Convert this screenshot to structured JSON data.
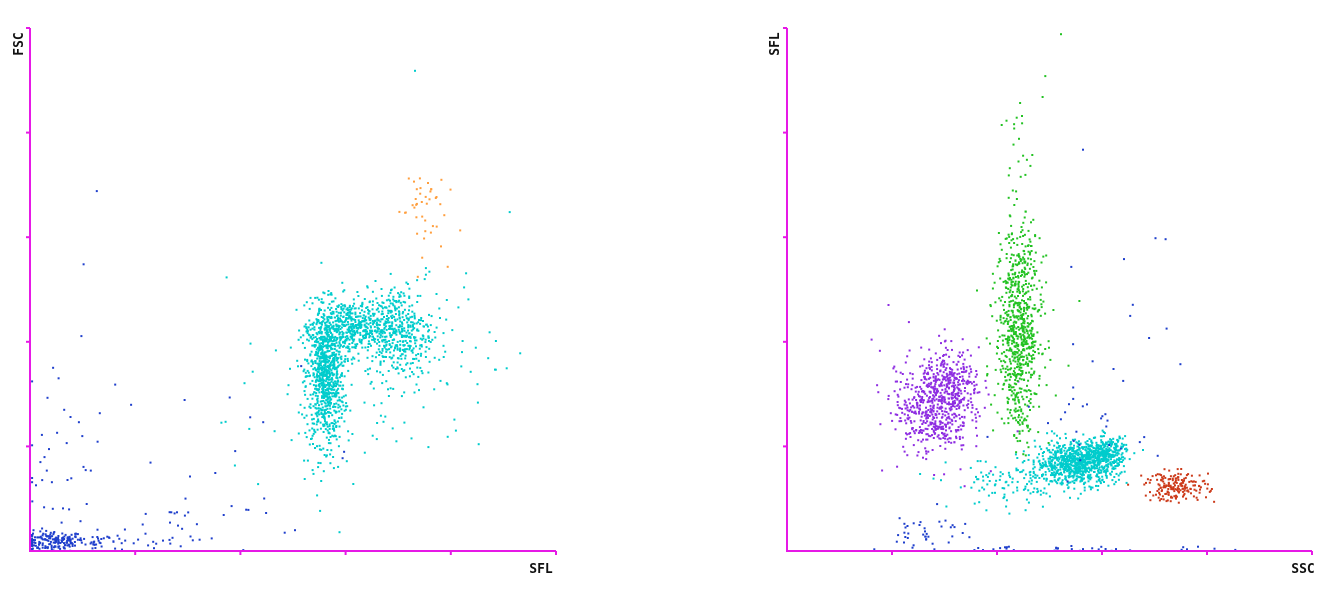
{
  "colors": {
    "axis": "#e619e6",
    "background": "#ffffff",
    "debris": "#1f3fcc",
    "neutrophil": "#00cccc",
    "basophil": "#ff9e3d",
    "lymphocyte": "#8e2de2",
    "monocyte": "#22c222",
    "eosinophil": "#cc3a1a"
  },
  "chart_data": [
    {
      "type": "scatter",
      "title": "",
      "xlabel": "SFL",
      "ylabel": "FSC",
      "xlim": [
        0,
        100
      ],
      "ylim": [
        0,
        100
      ],
      "grid": false,
      "series": [
        {
          "color_key": "debris",
          "clusters": [
            {
              "cx": 4,
              "cy": 2,
              "sx": 3,
              "sy": 1,
              "n": 150
            },
            {
              "cx": 13,
              "cy": 2,
              "sx": 6,
              "sy": 1,
              "n": 60
            },
            {
              "cx": 28,
              "cy": 5,
              "sx": 8,
              "sy": 3,
              "n": 28
            },
            {
              "cx": 6,
              "cy": 18,
              "sx": 4,
              "sy": 10,
              "n": 40
            },
            {
              "cx": 40,
              "cy": 18,
              "sx": 12,
              "sy": 8,
              "n": 18
            }
          ]
        },
        {
          "color_key": "neutrophil",
          "clusters": [
            {
              "cx": 56,
              "cy": 34,
              "sx": 1.8,
              "sy": 6.5,
              "n": 900
            },
            {
              "cx": 61,
              "cy": 43,
              "sx": 3.5,
              "sy": 2.6,
              "n": 450
            },
            {
              "cx": 70,
              "cy": 42,
              "sx": 3.2,
              "sy": 4.5,
              "n": 420
            },
            {
              "cx": 78,
              "cy": 40,
              "sx": 5,
              "sy": 8,
              "n": 45
            },
            {
              "cx": 57,
              "cy": 24,
              "sx": 10,
              "sy": 8,
              "n": 60
            }
          ]
        },
        {
          "color_key": "basophil",
          "clusters": [
            {
              "cx": 74,
              "cy": 66,
              "sx": 2.3,
              "sy": 4.5,
              "n": 42
            }
          ]
        }
      ],
      "outliers": [
        {
          "x": 73,
          "y": 92,
          "color_key": "neutrophil"
        },
        {
          "x": 91,
          "y": 65,
          "color_key": "neutrophil"
        },
        {
          "x": 93,
          "y": 38,
          "color_key": "neutrophil"
        },
        {
          "x": 12.5,
          "y": 69,
          "color_key": "debris"
        },
        {
          "x": 10,
          "y": 55,
          "color_key": "debris"
        },
        {
          "x": 16,
          "y": 32,
          "color_key": "debris"
        }
      ]
    },
    {
      "type": "scatter",
      "title": "",
      "xlabel": "SSC",
      "ylabel": "SFL",
      "xlim": [
        0,
        100
      ],
      "ylim": [
        0,
        100
      ],
      "grid": false,
      "series": [
        {
          "color_key": "lymphocyte",
          "clusters": [
            {
              "cx": 27.5,
              "cy": 27,
              "sx": 3.5,
              "sy": 4,
              "n": 420
            },
            {
              "cx": 31,
              "cy": 32,
              "sx": 2.8,
              "sy": 3.2,
              "n": 260
            },
            {
              "cx": 28,
              "cy": 29,
              "sx": 7,
              "sy": 9,
              "n": 60
            }
          ]
        },
        {
          "color_key": "monocyte",
          "clusters": [
            {
              "cx": 44,
              "cy": 42,
              "sx": 2.2,
              "sy": 7,
              "n": 520
            },
            {
              "cx": 44,
              "cy": 54,
              "sx": 1.8,
              "sy": 5,
              "n": 120
            },
            {
              "cx": 44,
              "cy": 30,
              "sx": 1.6,
              "sy": 5,
              "n": 110
            },
            {
              "cx": 44,
              "cy": 72,
              "sx": 1.5,
              "sy": 8,
              "n": 25
            }
          ]
        },
        {
          "color_key": "neutrophil",
          "clusters": [
            {
              "cx": 55,
              "cy": 17,
              "sx": 3.8,
              "sy": 2,
              "n": 800
            },
            {
              "cx": 60.5,
              "cy": 19,
              "sx": 2,
              "sy": 1.5,
              "n": 250
            },
            {
              "cx": 43,
              "cy": 13,
              "sx": 6,
              "sy": 2.5,
              "n": 120
            }
          ]
        },
        {
          "color_key": "eosinophil",
          "clusters": [
            {
              "cx": 74,
              "cy": 12.5,
              "sx": 3,
              "sy": 1.4,
              "n": 180
            }
          ]
        },
        {
          "color_key": "debris",
          "clusters": [
            {
              "cx": 27,
              "cy": 4,
              "sx": 3.5,
              "sy": 2,
              "n": 38
            },
            {
              "cx": 52,
              "cy": 0.5,
              "sx": 18,
              "sy": 0.3,
              "n": 45
            },
            {
              "cx": 58,
              "cy": 23,
              "sx": 4,
              "sy": 4,
              "n": 22
            },
            {
              "cx": 65,
              "cy": 40,
              "sx": 8,
              "sy": 15,
              "n": 14
            }
          ]
        }
      ],
      "outliers": [
        {
          "x": 52,
          "y": 99,
          "color_key": "monocyte"
        },
        {
          "x": 49,
          "y": 91,
          "color_key": "monocyte"
        },
        {
          "x": 48.5,
          "y": 87,
          "color_key": "monocyte"
        },
        {
          "x": 44,
          "y": 79,
          "color_key": "monocyte"
        },
        {
          "x": 45.5,
          "y": 75,
          "color_key": "monocyte"
        },
        {
          "x": 36,
          "y": 50,
          "color_key": "monocyte"
        },
        {
          "x": 55.5,
          "y": 48,
          "color_key": "monocyte"
        },
        {
          "x": 80,
          "y": 15,
          "color_key": "eosinophil"
        },
        {
          "x": 64,
          "y": 56,
          "color_key": "debris"
        },
        {
          "x": 70,
          "y": 60,
          "color_key": "debris"
        },
        {
          "x": 62,
          "y": 35,
          "color_key": "debris"
        },
        {
          "x": 38,
          "y": 22,
          "color_key": "debris"
        },
        {
          "x": 30,
          "y": 6,
          "color_key": "debris"
        }
      ]
    }
  ]
}
